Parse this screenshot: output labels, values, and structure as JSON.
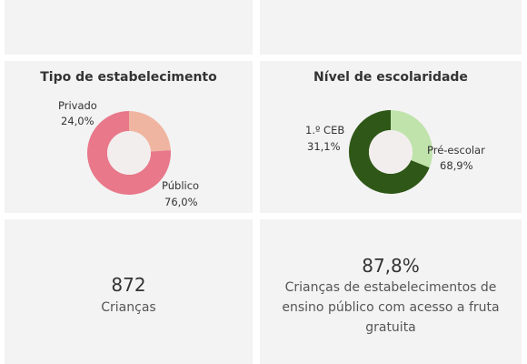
{
  "chart_data": [
    {
      "type": "pie",
      "title": "Tipo de estabelecimento",
      "slices": [
        {
          "label": "Privado",
          "value_label": "24,0%",
          "value": 24.0,
          "color": "#efb5a0"
        },
        {
          "label": "Público",
          "value_label": "76,0%",
          "value": 76.0,
          "color": "#e8788a"
        }
      ]
    },
    {
      "type": "pie",
      "title": "Nível de escolaridade",
      "slices": [
        {
          "label": "1.º CEB",
          "value_label": "31,1%",
          "value": 31.1,
          "color": "#c0e3ab"
        },
        {
          "label": "Pré-escolar",
          "value_label": "68,9%",
          "value": 68.9,
          "color": "#2f5717"
        }
      ]
    }
  ],
  "kpis": {
    "children": {
      "value": "872",
      "label": "Crianças"
    },
    "fruit": {
      "value": "87,8%",
      "line1": "Crianças de estabelecimentos de",
      "line2": "ensino público com acesso a fruta",
      "line3": "gratuita"
    }
  },
  "colors": {
    "panel_bg": "#f3f3f3",
    "donut_hole": "#f3eeee"
  }
}
